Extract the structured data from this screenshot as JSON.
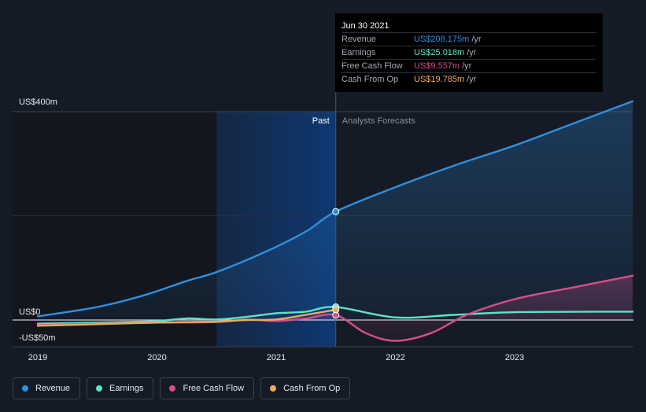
{
  "tooltip": {
    "date": "Jun 30 2021",
    "rows": [
      {
        "label": "Revenue",
        "value": "US$208.175m",
        "unit": "/yr",
        "color": "#2f8fe0"
      },
      {
        "label": "Earnings",
        "value": "US$25.018m",
        "unit": "/yr",
        "color": "#5de3c9"
      },
      {
        "label": "Free Cash Flow",
        "value": "US$9.557m",
        "unit": "/yr",
        "color": "#d64e8a"
      },
      {
        "label": "Cash From Op",
        "value": "US$19.785m",
        "unit": "/yr",
        "color": "#f0a95a"
      }
    ]
  },
  "legend": [
    {
      "label": "Revenue",
      "color": "#2f8fe0"
    },
    {
      "label": "Earnings",
      "color": "#5de3c9"
    },
    {
      "label": "Free Cash Flow",
      "color": "#d64e8a"
    },
    {
      "label": "Cash From Op",
      "color": "#f0a95a"
    }
  ],
  "chart_data": {
    "type": "line",
    "y_labels": [
      "US$400m",
      "US$0",
      "-US$50m"
    ],
    "ylim": [
      -50,
      400
    ],
    "x_ticks": [
      "2019",
      "2020",
      "2021",
      "2022",
      "2023"
    ],
    "x_tick_values": [
      2019,
      2020,
      2021,
      2022,
      2023
    ],
    "xlim": [
      2019,
      2023.99
    ],
    "past_label": "Past",
    "forecast_label": "Analysts Forecasts",
    "divider_x": 2021.5,
    "highlight_start": 2020.5,
    "series": [
      {
        "name": "Revenue",
        "color": "#2f8fe0",
        "fill": true,
        "points": [
          [
            2019,
            7
          ],
          [
            2019.5,
            25
          ],
          [
            2019.9,
            48
          ],
          [
            2020.25,
            75
          ],
          [
            2020.5,
            92
          ],
          [
            2020.9,
            130
          ],
          [
            2021.25,
            170
          ],
          [
            2021.5,
            208.175
          ],
          [
            2022,
            255
          ],
          [
            2022.5,
            297
          ],
          [
            2023,
            335
          ],
          [
            2023.5,
            378
          ],
          [
            2023.99,
            420
          ]
        ]
      },
      {
        "name": "Earnings",
        "color": "#5de3c9",
        "fill": false,
        "points": [
          [
            2019,
            -7
          ],
          [
            2019.5,
            -5
          ],
          [
            2020,
            -2
          ],
          [
            2020.25,
            3
          ],
          [
            2020.5,
            1
          ],
          [
            2020.75,
            6
          ],
          [
            2021,
            13
          ],
          [
            2021.25,
            16
          ],
          [
            2021.5,
            25.018
          ],
          [
            2022,
            5
          ],
          [
            2022.5,
            10
          ],
          [
            2023,
            15
          ],
          [
            2023.99,
            16
          ]
        ]
      },
      {
        "name": "Free Cash Flow",
        "color": "#d64e8a",
        "fill": true,
        "points": [
          [
            2019,
            -10
          ],
          [
            2019.5,
            -7
          ],
          [
            2020,
            -5
          ],
          [
            2020.5,
            -4
          ],
          [
            2020.75,
            1
          ],
          [
            2021,
            -2
          ],
          [
            2021.25,
            3
          ],
          [
            2021.5,
            9.557
          ],
          [
            2021.75,
            -25
          ],
          [
            2022,
            -40
          ],
          [
            2022.3,
            -25
          ],
          [
            2022.6,
            10
          ],
          [
            2023,
            40
          ],
          [
            2023.5,
            63
          ],
          [
            2023.99,
            85
          ]
        ]
      },
      {
        "name": "Cash From Op",
        "color": "#f0a95a",
        "fill": false,
        "points": [
          [
            2019,
            -11
          ],
          [
            2019.5,
            -8
          ],
          [
            2020,
            -5
          ],
          [
            2020.5,
            -3
          ],
          [
            2020.75,
            0
          ],
          [
            2021,
            1
          ],
          [
            2021.25,
            10
          ],
          [
            2021.5,
            19.785
          ]
        ]
      }
    ]
  }
}
